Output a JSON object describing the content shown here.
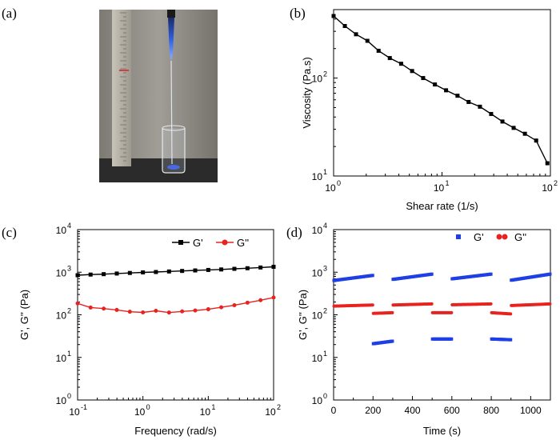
{
  "panels": {
    "a": {
      "label": "(a)"
    },
    "b": {
      "label": "(b)"
    },
    "c": {
      "label": "(c)"
    },
    "d": {
      "label": "(d)"
    }
  },
  "colors": {
    "black": "#000000",
    "red": "#e8231f",
    "blue": "#1f3fe6",
    "photo_bg": "#8f8c86"
  },
  "chart_data": [
    {
      "panel": "b",
      "type": "line",
      "title": "",
      "xlabel": "Shear rate (1/s)",
      "ylabel": "Viscosity (Pa.s)",
      "xscale": "log",
      "yscale": "log",
      "xlim": [
        1,
        100
      ],
      "ylim": [
        10,
        500
      ],
      "xticks": [
        {
          "v": 1,
          "base": "10",
          "exp": "0"
        },
        {
          "v": 10,
          "base": "10",
          "exp": "1"
        },
        {
          "v": 100,
          "base": "10",
          "exp": "2"
        }
      ],
      "yticks": [
        {
          "v": 10,
          "base": "10",
          "exp": "1"
        },
        {
          "v": 100,
          "base": "10",
          "exp": "2"
        }
      ],
      "series": [
        {
          "name": "Viscosity",
          "color": "#000000",
          "marker": "square",
          "x": [
            1,
            1.27,
            1.61,
            2.05,
            2.6,
            3.3,
            4.2,
            5.3,
            6.7,
            8.6,
            10.9,
            13.9,
            17.6,
            22.4,
            28.4,
            36.1,
            45.8,
            58.2,
            73.9,
            93.8
          ],
          "y": [
            430,
            340,
            280,
            240,
            190,
            160,
            140,
            118,
            100,
            86,
            75,
            66,
            57,
            51,
            43,
            36,
            31,
            27,
            23,
            13.5
          ]
        }
      ]
    },
    {
      "panel": "c",
      "type": "line",
      "title": "",
      "xlabel": "Frequency (rad/s)",
      "ylabel": "G', G'' (Pa)",
      "xscale": "log",
      "yscale": "log",
      "xlim": [
        0.1,
        100
      ],
      "ylim": [
        1,
        10000
      ],
      "xticks": [
        {
          "v": 0.1,
          "base": "10",
          "exp": "-1"
        },
        {
          "v": 1,
          "base": "10",
          "exp": "0"
        },
        {
          "v": 10,
          "base": "10",
          "exp": "1"
        },
        {
          "v": 100,
          "base": "10",
          "exp": "2"
        }
      ],
      "yticks": [
        {
          "v": 1,
          "base": "10",
          "exp": "0"
        },
        {
          "v": 10,
          "base": "10",
          "exp": "1"
        },
        {
          "v": 100,
          "base": "10",
          "exp": "2"
        },
        {
          "v": 1000,
          "base": "10",
          "exp": "3"
        },
        {
          "v": 10000,
          "base": "10",
          "exp": "4"
        }
      ],
      "legend": "top-right",
      "series": [
        {
          "name": "G'",
          "color": "#000000",
          "marker": "square",
          "x": [
            0.1,
            0.158,
            0.251,
            0.398,
            0.631,
            1,
            1.58,
            2.51,
            3.98,
            6.31,
            10,
            15.8,
            25.1,
            39.8,
            63.1,
            100
          ],
          "y": [
            850,
            880,
            900,
            930,
            960,
            990,
            1010,
            1040,
            1070,
            1100,
            1130,
            1160,
            1200,
            1240,
            1290,
            1340
          ]
        },
        {
          "name": "G''",
          "color": "#e8231f",
          "marker": "circle",
          "x": [
            0.1,
            0.158,
            0.251,
            0.398,
            0.631,
            1,
            1.58,
            2.51,
            3.98,
            6.31,
            10,
            15.8,
            25.1,
            39.8,
            63.1,
            100
          ],
          "y": [
            185,
            148,
            140,
            130,
            118,
            114,
            124,
            113,
            120,
            126,
            135,
            150,
            168,
            192,
            220,
            255
          ]
        }
      ]
    },
    {
      "panel": "d",
      "type": "scatter",
      "title": "",
      "xlabel": "Time (s)",
      "ylabel": "G', G'' (Pa)",
      "xscale": "linear",
      "yscale": "log",
      "xlim": [
        0,
        1100
      ],
      "ylim": [
        1,
        10000
      ],
      "xticks": [
        {
          "v": 0,
          "text": "0"
        },
        {
          "v": 200,
          "text": "200"
        },
        {
          "v": 400,
          "text": "400"
        },
        {
          "v": 600,
          "text": "600"
        },
        {
          "v": 800,
          "text": "800"
        },
        {
          "v": 1000,
          "text": "1000"
        }
      ],
      "yticks": [
        {
          "v": 1,
          "base": "10",
          "exp": "0"
        },
        {
          "v": 10,
          "base": "10",
          "exp": "1"
        },
        {
          "v": 100,
          "base": "10",
          "exp": "2"
        },
        {
          "v": 1000,
          "base": "10",
          "exp": "3"
        },
        {
          "v": 10000,
          "base": "10",
          "exp": "4"
        }
      ],
      "legend": "top-center",
      "series": [
        {
          "name": "G'",
          "color": "#1f3fe6",
          "marker": "square",
          "segments": [
            {
              "t": [
                0,
                200
              ],
              "y": [
                640,
                840
              ]
            },
            {
              "t": [
                200,
                300
              ],
              "y": [
                21,
                24
              ]
            },
            {
              "t": [
                300,
                500
              ],
              "y": [
                680,
                900
              ]
            },
            {
              "t": [
                500,
                600
              ],
              "y": [
                27,
                27
              ]
            },
            {
              "t": [
                600,
                800
              ],
              "y": [
                700,
                900
              ]
            },
            {
              "t": [
                800,
                900
              ],
              "y": [
                27,
                26
              ]
            },
            {
              "t": [
                900,
                1100
              ],
              "y": [
                650,
                900
              ]
            }
          ]
        },
        {
          "name": "G''",
          "color": "#e8231f",
          "marker": "circle",
          "segments": [
            {
              "t": [
                0,
                200
              ],
              "y": [
                160,
                170
              ]
            },
            {
              "t": [
                200,
                300
              ],
              "y": [
                108,
                112
              ]
            },
            {
              "t": [
                300,
                500
              ],
              "y": [
                170,
                180
              ]
            },
            {
              "t": [
                500,
                600
              ],
              "y": [
                112,
                112
              ]
            },
            {
              "t": [
                600,
                800
              ],
              "y": [
                172,
                180
              ]
            },
            {
              "t": [
                800,
                900
              ],
              "y": [
                112,
                105
              ]
            },
            {
              "t": [
                900,
                1100
              ],
              "y": [
                165,
                180
              ]
            }
          ]
        }
      ]
    }
  ]
}
